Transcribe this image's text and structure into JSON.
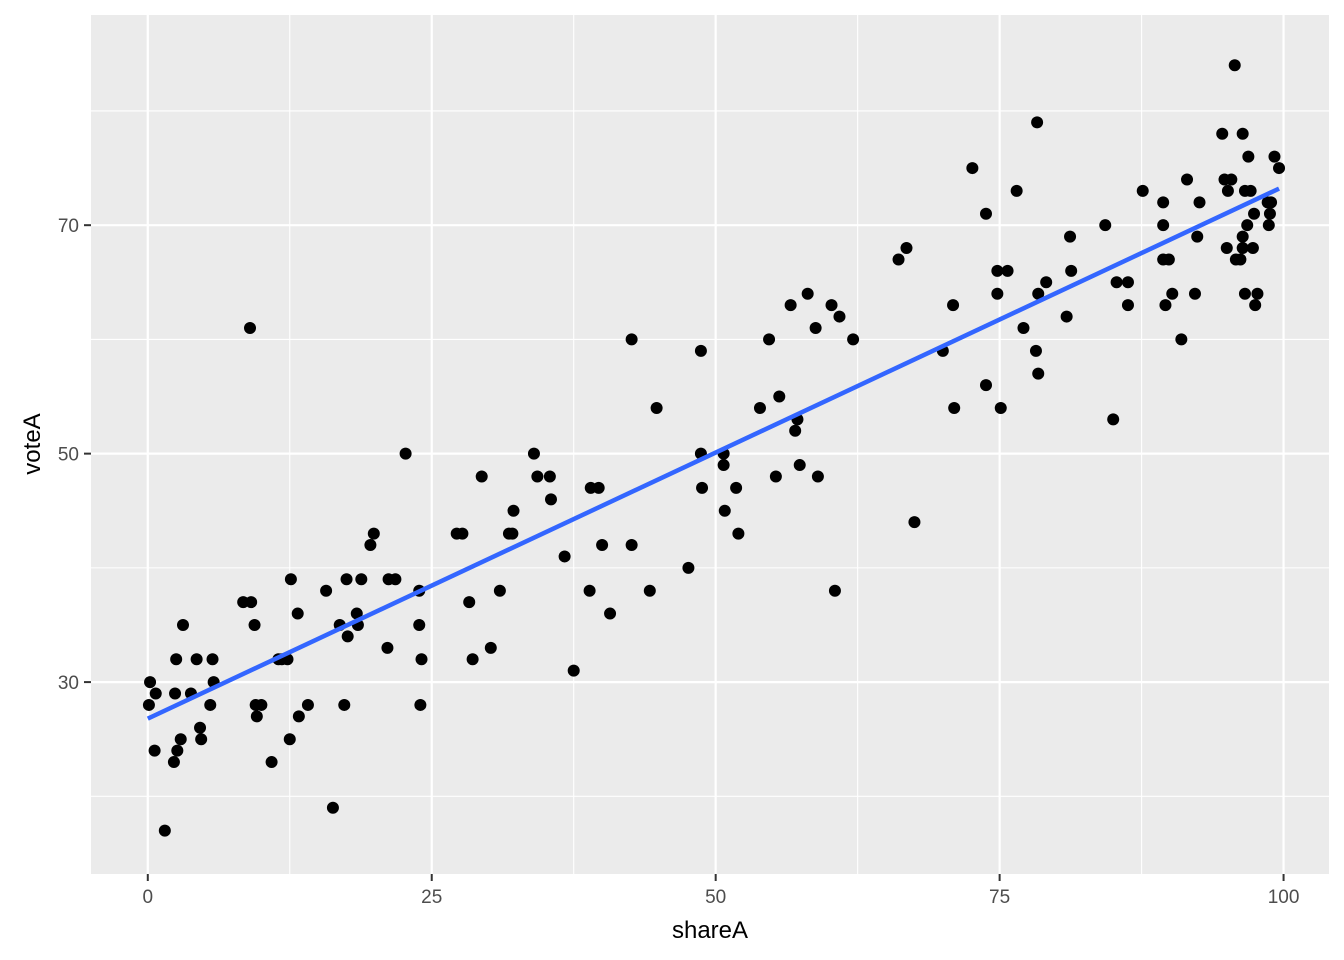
{
  "chart_data": {
    "type": "scatter",
    "xlabel": "shareA",
    "ylabel": "voteA",
    "xlim": [
      -5,
      104
    ],
    "ylim": [
      13.2,
      88.4
    ],
    "x_ticks": [
      0,
      25,
      50,
      75,
      100
    ],
    "y_ticks": [
      30,
      50,
      70
    ],
    "x_tick_labels": [
      "0",
      "25",
      "50",
      "75",
      "100"
    ],
    "y_tick_labels": [
      "30",
      "50",
      "70"
    ],
    "x_minor_ticks": [
      12.5,
      37.5,
      62.5,
      87.5
    ],
    "y_minor_ticks": [
      20,
      40,
      60,
      80
    ],
    "grid": true,
    "colors": {
      "panel": "#ebebeb",
      "grid": "#ffffff",
      "points": "#000000",
      "fit_line": "#3366ff"
    },
    "points": [
      [
        0.1,
        28
      ],
      [
        0.2,
        30
      ],
      [
        0.7,
        29
      ],
      [
        0.6,
        24
      ],
      [
        1.5,
        17
      ],
      [
        2.3,
        23
      ],
      [
        2.4,
        29
      ],
      [
        2.5,
        32
      ],
      [
        2.6,
        24
      ],
      [
        2.9,
        25
      ],
      [
        3.1,
        35
      ],
      [
        3.8,
        29
      ],
      [
        4.3,
        32
      ],
      [
        4.6,
        26
      ],
      [
        4.7,
        25
      ],
      [
        5.5,
        28
      ],
      [
        5.7,
        32
      ],
      [
        5.8,
        30
      ],
      [
        8.4,
        37
      ],
      [
        9.1,
        37
      ],
      [
        9.0,
        61
      ],
      [
        9.4,
        35
      ],
      [
        9.5,
        28
      ],
      [
        9.6,
        27
      ],
      [
        10.0,
        28
      ],
      [
        10.9,
        23
      ],
      [
        11.5,
        32
      ],
      [
        11.8,
        32
      ],
      [
        12.3,
        32
      ],
      [
        12.5,
        25
      ],
      [
        12.6,
        39
      ],
      [
        13.2,
        36
      ],
      [
        13.3,
        27
      ],
      [
        14.1,
        28
      ],
      [
        15.7,
        38
      ],
      [
        16.3,
        19
      ],
      [
        16.9,
        35
      ],
      [
        17.3,
        28
      ],
      [
        17.5,
        39
      ],
      [
        17.6,
        34
      ],
      [
        18.4,
        36
      ],
      [
        18.5,
        35
      ],
      [
        18.8,
        39
      ],
      [
        19.6,
        42
      ],
      [
        19.9,
        43
      ],
      [
        21.1,
        33
      ],
      [
        21.2,
        39
      ],
      [
        21.8,
        39
      ],
      [
        22.7,
        50
      ],
      [
        23.9,
        35
      ],
      [
        23.9,
        38
      ],
      [
        24.0,
        28
      ],
      [
        24.1,
        32
      ],
      [
        27.2,
        43
      ],
      [
        27.7,
        43
      ],
      [
        28.3,
        37
      ],
      [
        28.6,
        32
      ],
      [
        29.4,
        48
      ],
      [
        30.2,
        33
      ],
      [
        31.0,
        38
      ],
      [
        31.8,
        43
      ],
      [
        32.1,
        43
      ],
      [
        32.2,
        45
      ],
      [
        34.0,
        50
      ],
      [
        34.3,
        48
      ],
      [
        35.4,
        48
      ],
      [
        35.5,
        46
      ],
      [
        36.7,
        41
      ],
      [
        37.5,
        31
      ],
      [
        38.9,
        38
      ],
      [
        39.0,
        47
      ],
      [
        39.7,
        47
      ],
      [
        40.0,
        42
      ],
      [
        40.7,
        36
      ],
      [
        42.6,
        60
      ],
      [
        42.6,
        42
      ],
      [
        44.2,
        38
      ],
      [
        44.8,
        54
      ],
      [
        47.6,
        40
      ],
      [
        48.7,
        59
      ],
      [
        48.7,
        50
      ],
      [
        48.8,
        47
      ],
      [
        50.7,
        50
      ],
      [
        50.7,
        49
      ],
      [
        50.8,
        45
      ],
      [
        51.8,
        47
      ],
      [
        52.0,
        43
      ],
      [
        53.9,
        54
      ],
      [
        54.7,
        60
      ],
      [
        55.3,
        48
      ],
      [
        55.6,
        55
      ],
      [
        56.6,
        63
      ],
      [
        57.0,
        52
      ],
      [
        57.2,
        53
      ],
      [
        57.4,
        49
      ],
      [
        58.1,
        64
      ],
      [
        58.8,
        61
      ],
      [
        59.0,
        48
      ],
      [
        60.2,
        63
      ],
      [
        60.5,
        38
      ],
      [
        60.9,
        62
      ],
      [
        62.1,
        60
      ],
      [
        66.1,
        67
      ],
      [
        66.8,
        68
      ],
      [
        67.5,
        44
      ],
      [
        70.0,
        59
      ],
      [
        70.9,
        63
      ],
      [
        71.0,
        54
      ],
      [
        72.6,
        75
      ],
      [
        73.8,
        71
      ],
      [
        73.8,
        56
      ],
      [
        74.8,
        66
      ],
      [
        74.8,
        64
      ],
      [
        75.1,
        54
      ],
      [
        75.7,
        66
      ],
      [
        76.5,
        73
      ],
      [
        77.1,
        61
      ],
      [
        78.2,
        59
      ],
      [
        78.3,
        79
      ],
      [
        78.4,
        64
      ],
      [
        78.4,
        57
      ],
      [
        79.1,
        65
      ],
      [
        80.9,
        62
      ],
      [
        81.2,
        69
      ],
      [
        81.3,
        66
      ],
      [
        84.3,
        70
      ],
      [
        85.0,
        53
      ],
      [
        85.3,
        65
      ],
      [
        86.3,
        65
      ],
      [
        86.3,
        63
      ],
      [
        87.6,
        73
      ],
      [
        89.4,
        72
      ],
      [
        89.4,
        70
      ],
      [
        89.4,
        67
      ],
      [
        89.6,
        63
      ],
      [
        89.9,
        67
      ],
      [
        90.2,
        64
      ],
      [
        91.0,
        60
      ],
      [
        91.5,
        74
      ],
      [
        92.2,
        64
      ],
      [
        92.4,
        69
      ],
      [
        92.6,
        72
      ],
      [
        94.6,
        78
      ],
      [
        94.8,
        74
      ],
      [
        95.0,
        68
      ],
      [
        95.1,
        73
      ],
      [
        95.4,
        74
      ],
      [
        95.7,
        84
      ],
      [
        95.8,
        67
      ],
      [
        96.2,
        67
      ],
      [
        96.4,
        78
      ],
      [
        96.4,
        69
      ],
      [
        96.4,
        68
      ],
      [
        96.6,
        73
      ],
      [
        96.6,
        64
      ],
      [
        96.8,
        70
      ],
      [
        96.9,
        76
      ],
      [
        97.1,
        73
      ],
      [
        97.3,
        68
      ],
      [
        97.4,
        71
      ],
      [
        97.5,
        63
      ],
      [
        97.7,
        64
      ],
      [
        98.6,
        72
      ],
      [
        98.7,
        70
      ],
      [
        98.8,
        71
      ],
      [
        98.9,
        72
      ],
      [
        99.2,
        76
      ],
      [
        99.6,
        75
      ]
    ],
    "fit_line": {
      "type": "linear",
      "x": [
        0,
        99.6
      ],
      "y": [
        26.8,
        73.2
      ]
    }
  }
}
